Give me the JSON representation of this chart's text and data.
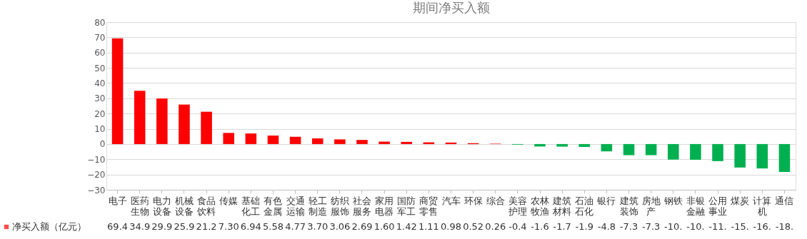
{
  "chart_data": {
    "type": "bar",
    "title": "期间净买入额",
    "categories": [
      "电子",
      "医药生物",
      "电力设备",
      "机械设备",
      "食品饮料",
      "传媒",
      "基础化工",
      "有色金属",
      "交通运输",
      "轻工制造",
      "纺织服饰",
      "社会服务",
      "家用电器",
      "国防军工",
      "商贸零售",
      "汽车",
      "环保",
      "综合",
      "美容护理",
      "农林牧渔",
      "建筑材料",
      "石油石化",
      "银行",
      "建筑装饰",
      "房地产",
      "钢铁",
      "非银金融",
      "公用事业",
      "煤炭",
      "计算机",
      "通信"
    ],
    "series": [
      {
        "name": "净买入额（亿元）",
        "color": "#ff0000",
        "values": [
          69.4,
          34.9,
          29.9,
          25.9,
          21.2,
          7.3,
          6.94,
          5.58,
          4.77,
          3.7,
          3.06,
          2.69,
          1.6,
          1.42,
          1.11,
          0.98,
          0.52,
          0.26,
          -0.4,
          -1.6,
          -1.7,
          -1.9,
          -4.8,
          -7.3,
          -7.3,
          -10.2,
          -10.3,
          -11.2,
          -15.4,
          -16.0,
          -18.3
        ],
        "colors": [
          "#ff0000",
          "#ff0000",
          "#ff0000",
          "#ff0000",
          "#ff0000",
          "#ff0000",
          "#ff0000",
          "#ff0000",
          "#ff0000",
          "#ff0000",
          "#ff0000",
          "#ff0000",
          "#ff0000",
          "#ff0000",
          "#ff0000",
          "#ff0000",
          "#ff0000",
          "#ff0000",
          "#00b050",
          "#00b050",
          "#00b050",
          "#00b050",
          "#00b050",
          "#00b050",
          "#00b050",
          "#00b050",
          "#00b050",
          "#00b050",
          "#00b050",
          "#00b050",
          "#00b050"
        ],
        "value_labels": [
          "69.4",
          "34.9",
          "29.9",
          "25.9",
          "21.2",
          "7.30",
          "6.94",
          "5.58",
          "4.77",
          "3.70",
          "3.06",
          "2.69",
          "1.60",
          "1.42",
          "1.11",
          "0.98",
          "0.52",
          "0.26",
          "-0.4",
          "-1.6",
          "-1.7",
          "-1.9",
          "-4.8",
          "-7.3",
          "-7.3",
          "-10.",
          "-10.",
          "-11.",
          "-15.",
          "-16.",
          "-18."
        ]
      }
    ],
    "ylim": [
      -30,
      80
    ],
    "yticks": [
      -30,
      -20,
      -10,
      0,
      10,
      20,
      30,
      40,
      50,
      60,
      70,
      80
    ],
    "grid": "y",
    "legend": "bottom left"
  }
}
